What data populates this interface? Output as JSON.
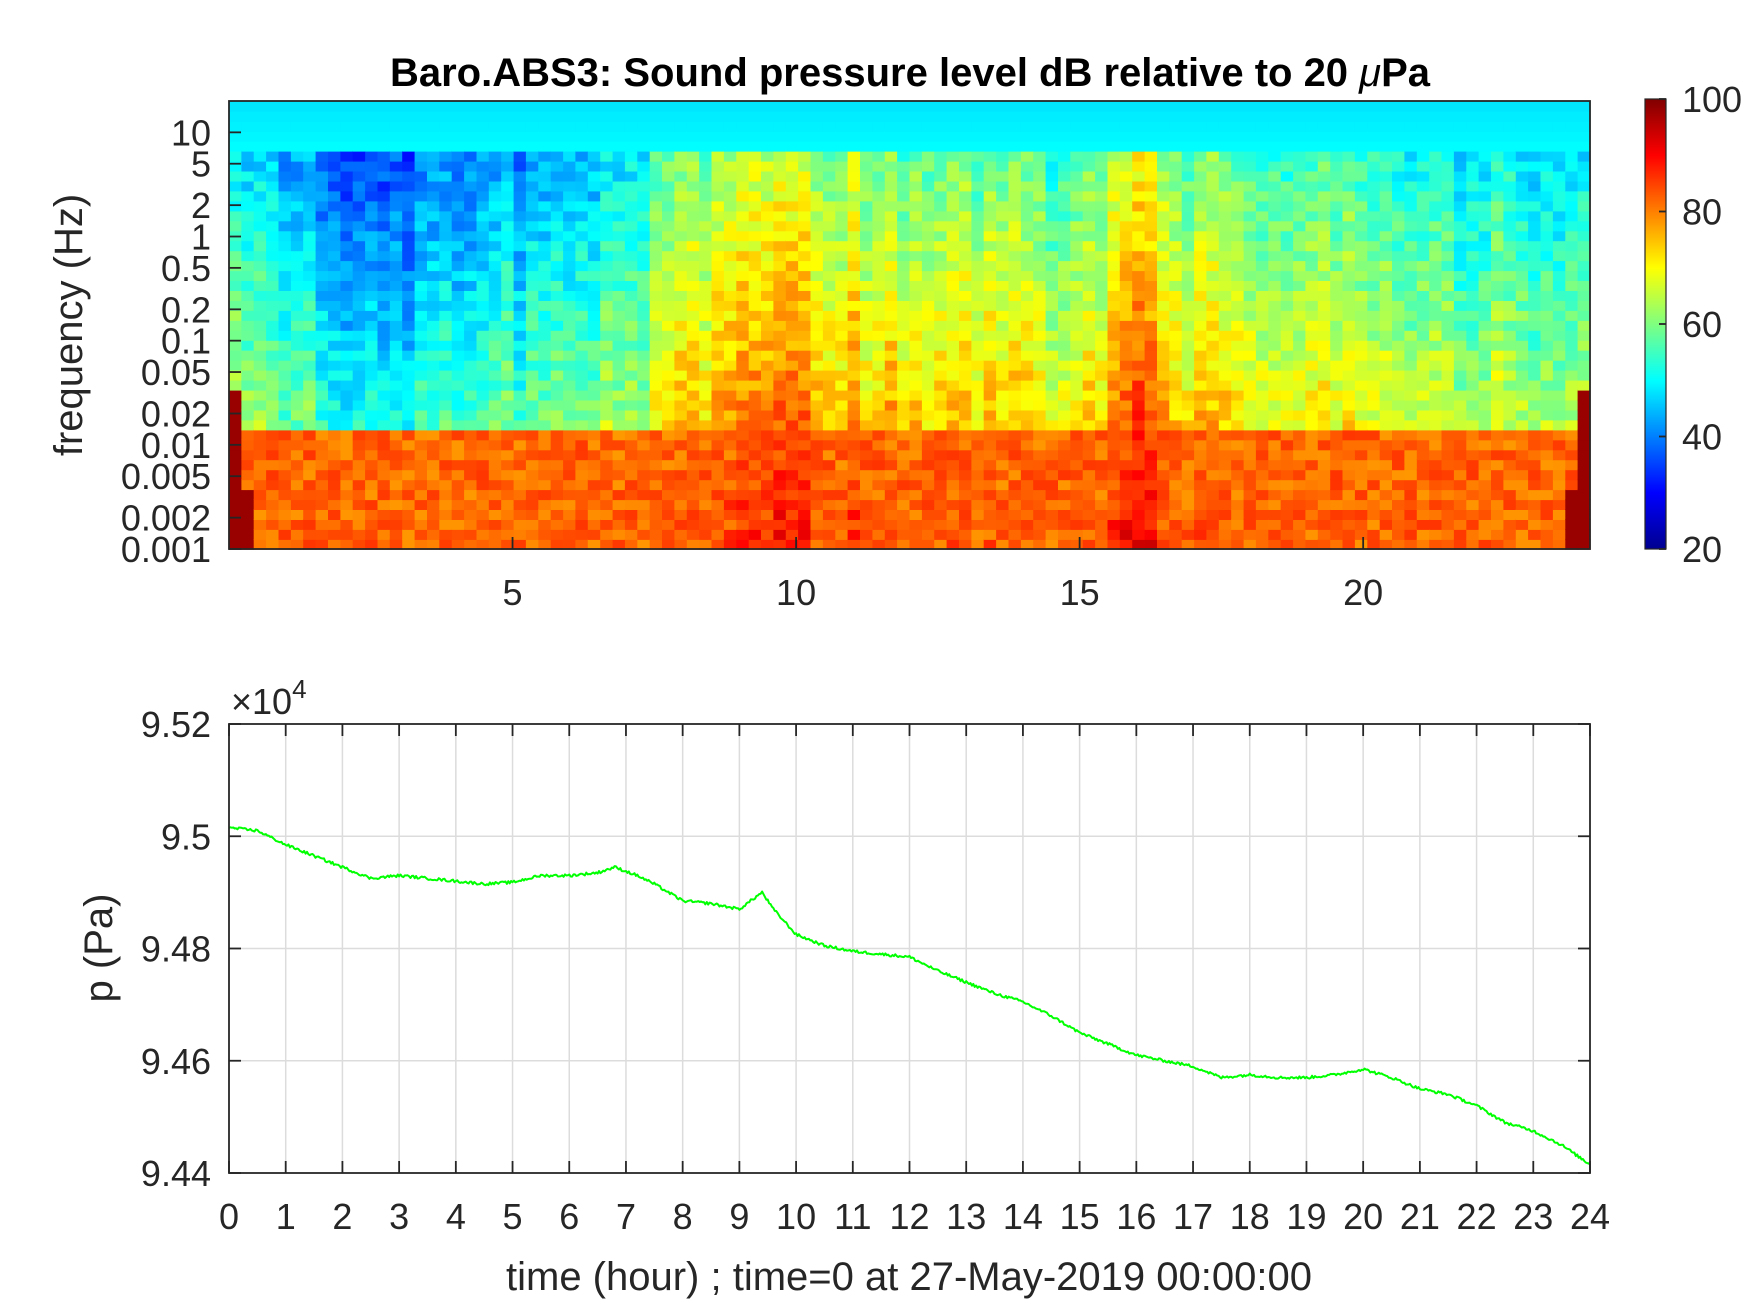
{
  "chart_data": [
    {
      "type": "heatmap",
      "title_prefix": "Baro.ABS3: Sound pressure level dB relative to 20 ",
      "title_mu": "μ",
      "title_suffix": "Pa",
      "ylabel": "frequency (Hz)",
      "xlabel": "",
      "xlim": [
        0,
        24
      ],
      "x_ticks": [
        "5",
        "10",
        "15",
        "20"
      ],
      "x_tick_values": [
        5,
        10,
        15,
        20
      ],
      "yscale": "log",
      "ylim": [
        0.001,
        20
      ],
      "y_ticks": [
        "0.001",
        "0.002",
        "0.005",
        "0.01",
        "0.02",
        "0.05",
        "0.1",
        "0.2",
        "0.5",
        "1",
        "2",
        "5",
        "10"
      ],
      "y_tick_values": [
        0.001,
        0.002,
        0.005,
        0.01,
        0.02,
        0.05,
        0.1,
        0.2,
        0.5,
        1,
        2,
        5,
        10
      ],
      "colormap": "jet",
      "colorbar_range": [
        20,
        100
      ],
      "colorbar_ticks": [
        "20",
        "40",
        "60",
        "80",
        "100"
      ],
      "colorbar_tick_values": [
        20,
        40,
        60,
        80,
        100
      ],
      "approx_activity_by_hour": [
        [
          0.5,
          62
        ],
        [
          2,
          52
        ],
        [
          4,
          51
        ],
        [
          5.5,
          58
        ],
        [
          7,
          62
        ],
        [
          8.5,
          74
        ],
        [
          9.5,
          77
        ],
        [
          11,
          75
        ],
        [
          12.5,
          70
        ],
        [
          14,
          72
        ],
        [
          15,
          66
        ],
        [
          16,
          82
        ],
        [
          17,
          72
        ],
        [
          18.5,
          68
        ],
        [
          20,
          66
        ],
        [
          21.5,
          64
        ],
        [
          23,
          62
        ]
      ]
    },
    {
      "type": "line",
      "xlabel": "time (hour) ; time=0 at 27-May-2019 00:00:00",
      "ylabel": "p (Pa)",
      "xlim": [
        0,
        24
      ],
      "ylim": [
        94400,
        95200
      ],
      "exponent_base": "×10",
      "exponent_power": "4",
      "x_ticks": [
        "0",
        "1",
        "2",
        "3",
        "4",
        "5",
        "6",
        "7",
        "8",
        "9",
        "10",
        "11",
        "12",
        "13",
        "14",
        "15",
        "16",
        "17",
        "18",
        "19",
        "20",
        "21",
        "22",
        "23",
        "24"
      ],
      "y_ticks": [
        "9.44",
        "9.46",
        "9.48",
        "9.5",
        "9.52"
      ],
      "y_tick_values": [
        94400,
        94600,
        94800,
        95000,
        95200
      ],
      "grid": true,
      "series": [
        {
          "color": "#00ff00",
          "x": [
            0,
            0.5,
            1,
            1.5,
            2,
            2.5,
            3,
            3.5,
            4,
            4.5,
            5,
            5.5,
            6,
            6.5,
            6.8,
            7.2,
            7.5,
            8,
            8.5,
            9,
            9.2,
            9.4,
            9.6,
            10,
            10.5,
            11,
            11.5,
            12,
            12.5,
            13,
            13.5,
            14,
            14.5,
            15,
            15.5,
            16,
            16.5,
            17,
            17.5,
            18,
            18.5,
            19,
            19.5,
            20,
            20.5,
            21,
            21.5,
            22,
            22.5,
            23,
            23.5,
            24
          ],
          "y": [
            95015,
            95010,
            94985,
            94965,
            94945,
            94925,
            94930,
            94925,
            94920,
            94915,
            94918,
            94930,
            94930,
            94935,
            94945,
            94930,
            94915,
            94885,
            94880,
            94870,
            94885,
            94900,
            94870,
            94825,
            94805,
            94795,
            94790,
            94785,
            94760,
            94740,
            94720,
            94705,
            94680,
            94650,
            94630,
            94610,
            94600,
            94590,
            94570,
            94575,
            94570,
            94570,
            94575,
            94585,
            94570,
            94550,
            94540,
            94520,
            94490,
            94475,
            94450,
            94415
          ]
        }
      ]
    }
  ]
}
